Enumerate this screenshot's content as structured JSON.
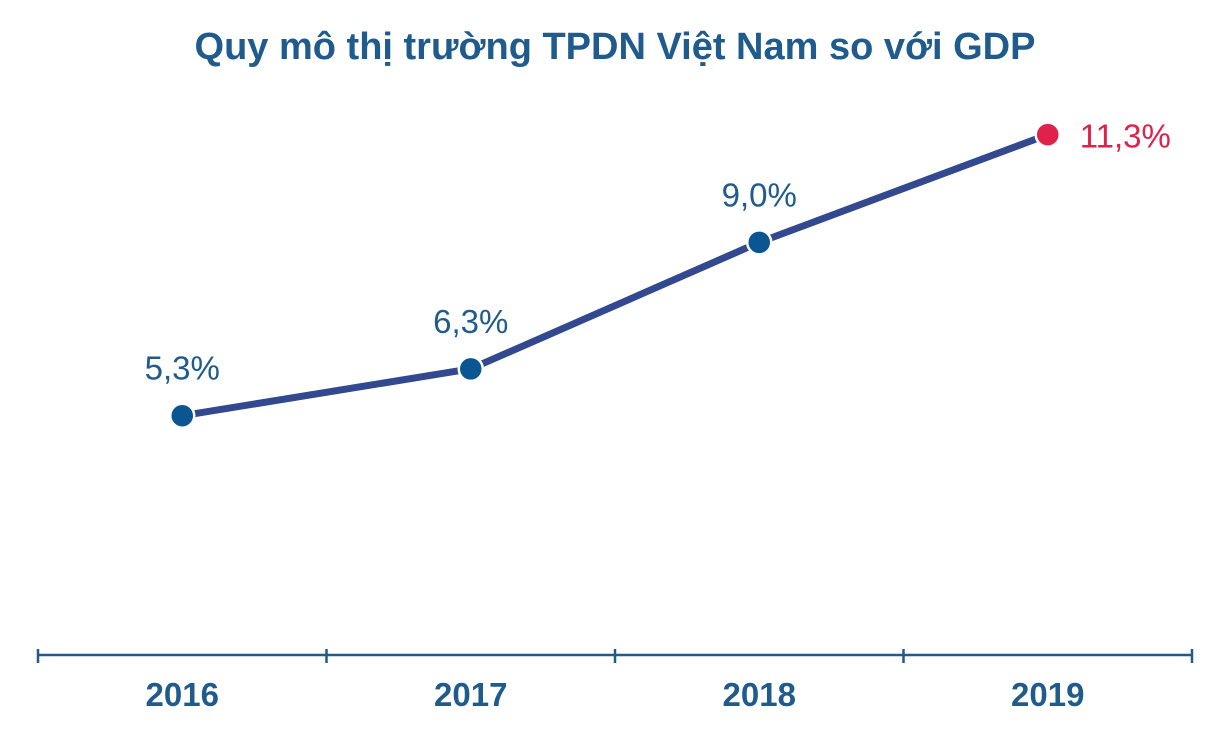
{
  "chart_data": {
    "type": "line",
    "title": "Quy mô thị trường TPDN Việt Nam so với GDP",
    "categories": [
      "2016",
      "2017",
      "2018",
      "2019"
    ],
    "values": [
      5.3,
      6.3,
      9.0,
      11.3
    ],
    "data_labels": [
      "5,3%",
      "6,3%",
      "9,0%",
      "11,3%"
    ],
    "ylim": [
      0,
      12
    ],
    "grid": false,
    "colors": {
      "title": "#1f5b8c",
      "line": "#32488f",
      "marker": "#0b5590",
      "highlight": "#e0224a",
      "axis": "#1f5b8c",
      "label": "#1f5b8c"
    }
  }
}
